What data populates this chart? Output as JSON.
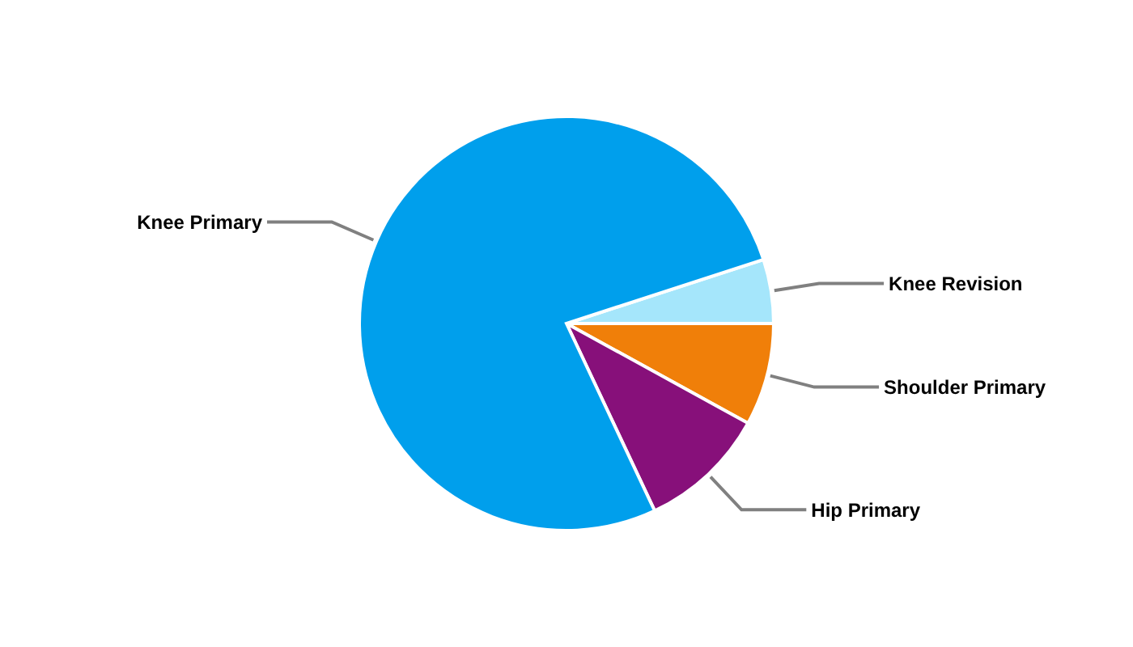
{
  "chart_data": {
    "type": "pie",
    "categories": [
      "Knee Revision",
      "Shoulder Primary",
      "Hip Primary",
      "Knee Primary"
    ],
    "values": [
      5,
      8,
      10,
      77
    ],
    "colors": [
      "#a5e6fb",
      "#f07f09",
      "#87107a",
      "#009fec"
    ]
  }
}
